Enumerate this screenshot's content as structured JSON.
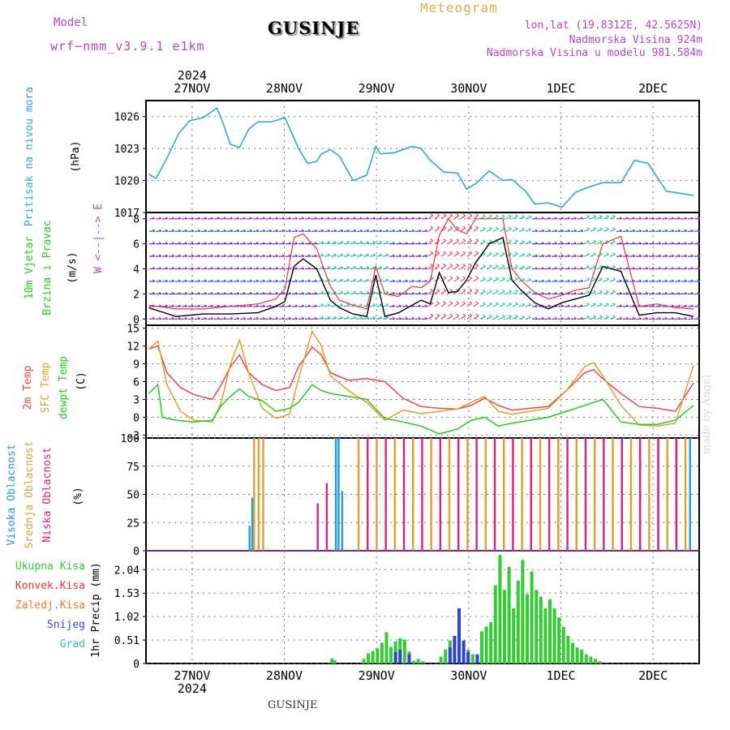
{
  "header": {
    "model_label": "Model",
    "model_name": "wrf−nmm_v3.9.1  e1km",
    "station": "GUSINJE",
    "meteogram": "Meteogram",
    "lonlat": "lon,lat (19.8312E, 42.5625N)",
    "altitude": "Nadmorska Visina 924m",
    "altitude_model": "Nadmorska Visina u modelu 981.584m"
  },
  "footer": {
    "station": "GUSINJE",
    "watermark": "made by Angel"
  },
  "colors": {
    "pressure": "#2aa9e0",
    "wind_black": "#000000",
    "wind_red": "#ee3333",
    "t2m": "#ee4444",
    "tsfc": "#dda030",
    "tdew": "#22cc22",
    "cloud_high": "#2299dd",
    "cloud_mid": "#dda030",
    "cloud_low": "#dd2277",
    "precip_total": "#33cc33",
    "precip_snow": "#3344cc",
    "precip_conv": "#ee3333"
  },
  "chart_data": [
    {
      "type": "line",
      "panel": "pressure",
      "ylabel": [
        "Pritisak na nivou mora",
        "(hPa)"
      ],
      "ylim": [
        1017,
        1027.5
      ],
      "yticks": [
        1017,
        1020,
        1023,
        1026
      ],
      "x_range_days": [
        0,
        6.0
      ],
      "xticks": [
        "27NOV",
        "28NOV",
        "29NOV",
        "30NOV",
        "1DEC",
        "2DEC"
      ],
      "xtick_year": "2024",
      "series": [
        {
          "color": "pressure",
          "x": [
            0,
            0.08,
            0.2,
            0.33,
            0.45,
            0.6,
            0.75,
            0.8,
            0.9,
            1.0,
            1.1,
            1.2,
            1.35,
            1.5,
            1.65,
            1.75,
            1.85,
            1.9,
            2.0,
            2.1,
            2.25,
            2.4,
            2.5,
            2.55,
            2.7,
            2.9,
            3.0,
            3.1,
            3.25,
            3.4,
            3.5,
            3.6,
            3.75,
            3.9,
            4.0,
            4.15,
            4.25,
            4.4,
            4.55,
            4.7,
            4.85,
            5.0,
            5.2,
            5.35,
            5.5,
            5.7,
            5.85,
            6.0
          ],
          "values": [
            1020.6,
            1020.2,
            1022.1,
            1024.4,
            1025.6,
            1025.9,
            1026.8,
            1025.8,
            1023.4,
            1023.1,
            1024.8,
            1025.5,
            1025.5,
            1025.9,
            1023.0,
            1021.6,
            1021.8,
            1022.5,
            1022.9,
            1022.3,
            1020.0,
            1020.5,
            1023.2,
            1022.5,
            1022.6,
            1023.2,
            1023.0,
            1021.9,
            1020.8,
            1020.7,
            1019.2,
            1019.7,
            1020.9,
            1020.0,
            1020.1,
            1019.0,
            1017.8,
            1017.9,
            1017.5,
            1018.9,
            1019.4,
            1019.8,
            1019.8,
            1021.9,
            1021.6,
            1019.0,
            1018.8,
            1018.6
          ]
        }
      ]
    },
    {
      "type": "line",
      "panel": "wind",
      "ylabel": [
        "10m Vjetar",
        "Brzina i Pravac",
        "(m/s)"
      ],
      "compass": "W <--|--> E",
      "ylim": [
        -0.5,
        8.5
      ],
      "yticks": [
        0,
        2,
        4,
        6,
        8
      ],
      "series": [
        {
          "name": "speed",
          "color": "wind_black",
          "x": [
            0,
            0.3,
            0.6,
            0.9,
            1.2,
            1.4,
            1.5,
            1.6,
            1.7,
            1.85,
            2.0,
            2.1,
            2.25,
            2.4,
            2.5,
            2.6,
            2.75,
            2.9,
            3.0,
            3.1,
            3.2,
            3.3,
            3.4,
            3.5,
            3.6,
            3.75,
            3.9,
            4.0,
            4.1,
            4.25,
            4.4,
            4.55,
            4.7,
            4.85,
            5.0,
            5.2,
            5.4,
            5.6,
            5.8,
            6.0
          ],
          "values": [
            0.9,
            0.2,
            0.4,
            0.4,
            0.5,
            1.0,
            1.4,
            4.2,
            4.8,
            4.0,
            1.5,
            0.9,
            0.4,
            0.2,
            3.5,
            0.2,
            0.5,
            1.1,
            1.5,
            1.2,
            3.7,
            2.1,
            2.2,
            3.1,
            4.5,
            6.0,
            6.5,
            3.1,
            2.3,
            1.3,
            0.8,
            1.3,
            1.6,
            1.9,
            4.2,
            3.8,
            0.3,
            0.5,
            0.5,
            0.2
          ]
        },
        {
          "name": "gust",
          "color": "wind_red",
          "x": [
            0,
            0.3,
            0.6,
            0.9,
            1.2,
            1.4,
            1.5,
            1.6,
            1.7,
            1.85,
            2.0,
            2.1,
            2.25,
            2.4,
            2.5,
            2.6,
            2.75,
            2.9,
            3.0,
            3.1,
            3.2,
            3.3,
            3.4,
            3.5,
            3.6,
            3.75,
            3.9,
            4.0,
            4.1,
            4.25,
            4.4,
            4.55,
            4.7,
            4.85,
            5.0,
            5.2,
            5.4,
            5.6,
            5.8,
            6.0
          ],
          "values": [
            1.1,
            0.8,
            0.8,
            1.0,
            1.2,
            1.6,
            2.4,
            6.5,
            6.8,
            5.6,
            2.6,
            1.5,
            1.1,
            0.8,
            4.2,
            2.0,
            1.8,
            2.6,
            2.5,
            3.0,
            6.7,
            8.0,
            7.1,
            6.8,
            8.0,
            8.0,
            8.0,
            4.0,
            3.1,
            2.1,
            1.6,
            1.9,
            2.3,
            2.5,
            6.0,
            6.6,
            1.0,
            1.2,
            0.9,
            0.8
          ]
        }
      ]
    },
    {
      "type": "line",
      "panel": "temperature",
      "ylabel": [
        "2m Temp",
        "SFC Temp",
        "dewpt Temp",
        "(C)"
      ],
      "ylim": [
        -3.5,
        15.5
      ],
      "yticks": [
        -3,
        0,
        3,
        6,
        9,
        12,
        15
      ],
      "series": [
        {
          "name": "2m Temp",
          "color": "t2m",
          "x": [
            0,
            0.1,
            0.2,
            0.35,
            0.5,
            0.7,
            0.8,
            0.9,
            1.0,
            1.1,
            1.25,
            1.4,
            1.55,
            1.65,
            1.8,
            1.9,
            2.0,
            2.2,
            2.4,
            2.6,
            2.8,
            3.0,
            3.2,
            3.4,
            3.55,
            3.7,
            3.85,
            4.0,
            4.2,
            4.4,
            4.6,
            4.8,
            4.9,
            5.0,
            5.2,
            5.4,
            5.6,
            5.8,
            6.0
          ],
          "values": [
            11.5,
            12.0,
            7.5,
            5.0,
            3.8,
            3.0,
            5.5,
            8.5,
            10.5,
            7.5,
            5.5,
            4.5,
            5.0,
            8.5,
            11.8,
            10.5,
            7.5,
            6.2,
            6.5,
            6.0,
            3.2,
            1.8,
            1.5,
            1.4,
            2.0,
            3.2,
            2.0,
            1.2,
            1.5,
            1.8,
            4.5,
            7.5,
            8.0,
            6.5,
            4.0,
            1.8,
            1.5,
            1.0,
            5.8
          ]
        },
        {
          "name": "SFC Temp",
          "color": "tsfc",
          "x": [
            0,
            0.1,
            0.2,
            0.35,
            0.5,
            0.7,
            0.8,
            0.9,
            1.0,
            1.1,
            1.25,
            1.4,
            1.55,
            1.65,
            1.8,
            1.9,
            2.0,
            2.2,
            2.4,
            2.6,
            2.8,
            3.0,
            3.2,
            3.4,
            3.55,
            3.7,
            3.85,
            4.0,
            4.2,
            4.4,
            4.6,
            4.8,
            4.9,
            5.0,
            5.2,
            5.4,
            5.6,
            5.8,
            6.0
          ],
          "values": [
            11.5,
            12.8,
            5.5,
            1.0,
            -0.5,
            -0.8,
            2.5,
            9.0,
            13.0,
            7.5,
            1.5,
            -0.2,
            0.5,
            6.5,
            14.5,
            12.0,
            7.0,
            4.5,
            2.5,
            -0.5,
            1.2,
            0.6,
            1.0,
            1.4,
            2.5,
            3.5,
            1.0,
            0.5,
            1.0,
            1.5,
            4.5,
            8.5,
            9.2,
            7.0,
            2.0,
            -1.3,
            -1.5,
            -1.0,
            8.8
          ]
        },
        {
          "name": "dewpt Temp",
          "color": "tdew",
          "x": [
            0,
            0.1,
            0.15,
            0.3,
            0.5,
            0.7,
            0.8,
            0.9,
            1.0,
            1.1,
            1.25,
            1.4,
            1.55,
            1.65,
            1.8,
            1.9,
            2.0,
            2.2,
            2.4,
            2.6,
            2.8,
            3.0,
            3.2,
            3.4,
            3.55,
            3.7,
            3.85,
            4.0,
            4.2,
            4.4,
            4.6,
            4.8,
            4.9,
            5.0,
            5.2,
            5.4,
            5.6,
            5.8,
            6.0
          ],
          "values": [
            4.0,
            5.5,
            0.0,
            -0.5,
            -0.8,
            -0.5,
            2.0,
            3.5,
            4.8,
            3.5,
            2.8,
            1.0,
            1.5,
            2.5,
            5.5,
            4.5,
            4.0,
            3.5,
            3.0,
            -0.2,
            -0.8,
            -1.5,
            -2.8,
            -2.0,
            -0.5,
            0.0,
            -1.5,
            -1.0,
            -0.5,
            0.0,
            1.0,
            2.0,
            2.5,
            3.0,
            -0.8,
            -1.2,
            -1.2,
            -0.5,
            2.0
          ]
        }
      ]
    },
    {
      "type": "bar",
      "panel": "clouds",
      "ylabel": [
        "Visoka Oblacnost",
        "Srednja Oblacnost",
        "Niska Oblacnost",
        "(%)"
      ],
      "ylim": [
        0,
        100
      ],
      "yticks": [
        0,
        25,
        50,
        75,
        100
      ],
      "segments": [
        {
          "name": "Visoka Oblacnost",
          "color": "cloud_high",
          "bars": [
            [
              1.1,
              22
            ],
            [
              1.13,
              47
            ],
            [
              2.05,
              100
            ],
            [
              2.08,
              100
            ],
            [
              2.12,
              53
            ],
            [
              4.2,
              100
            ],
            [
              4.5,
              100
            ],
            [
              4.7,
              47
            ],
            [
              5.2,
              100
            ],
            [
              5.4,
              100
            ],
            [
              5.6,
              100
            ],
            [
              5.8,
              100
            ],
            [
              5.95,
              100
            ]
          ]
        },
        {
          "name": "Srednja Oblacnost",
          "color": "cloud_mid",
          "bars": [
            [
              1.15,
              100
            ],
            [
              1.2,
              100
            ],
            [
              1.25,
              100
            ],
            [
              2.3,
              100
            ],
            [
              2.5,
              100
            ],
            [
              2.7,
              100
            ],
            [
              2.9,
              100
            ],
            [
              3.1,
              100
            ],
            [
              3.3,
              100
            ],
            [
              3.5,
              100
            ],
            [
              3.7,
              100
            ],
            [
              3.9,
              100
            ],
            [
              4.1,
              100
            ],
            [
              4.3,
              100
            ],
            [
              4.5,
              100
            ],
            [
              4.7,
              100
            ],
            [
              4.9,
              100
            ],
            [
              5.1,
              100
            ],
            [
              5.3,
              100
            ],
            [
              5.5,
              100
            ],
            [
              5.7,
              100
            ],
            [
              5.9,
              100
            ]
          ]
        },
        {
          "name": "Niska Oblacnost",
          "color": "cloud_low",
          "bars": [
            [
              1.85,
              42
            ],
            [
              1.95,
              60
            ],
            [
              2.4,
              100
            ],
            [
              2.6,
              100
            ],
            [
              2.8,
              100
            ],
            [
              3.0,
              100
            ],
            [
              3.2,
              100
            ],
            [
              3.4,
              100
            ],
            [
              3.6,
              100
            ],
            [
              3.8,
              100
            ],
            [
              4.0,
              100
            ],
            [
              4.2,
              100
            ],
            [
              4.4,
              100
            ],
            [
              4.6,
              100
            ],
            [
              4.8,
              100
            ],
            [
              5.0,
              100
            ],
            [
              5.2,
              100
            ],
            [
              5.4,
              100
            ],
            [
              5.6,
              100
            ],
            [
              5.8,
              100
            ]
          ]
        }
      ]
    },
    {
      "type": "bar",
      "panel": "precipitation",
      "ylabel": [
        "1hr Precip (mm)"
      ],
      "legend": [
        "Ukupna Kisa",
        "Konvek.Kisa",
        "Zaledj.Kisa",
        "Snijeg",
        "Grad"
      ],
      "legend_colors": [
        "#33cc33",
        "#ee3333",
        "#ee7733",
        "#4444dd",
        "#33bbbb"
      ],
      "ylim": [
        0,
        2.45
      ],
      "yticks": [
        0,
        0.51,
        1.02,
        1.53,
        2.04
      ],
      "series": [
        {
          "name": "Ukupna Kisa",
          "color": "precip_total",
          "x": [
            2.0,
            2.03,
            2.35,
            2.4,
            2.45,
            2.5,
            2.55,
            2.6,
            2.65,
            2.7,
            2.75,
            2.8,
            2.85,
            2.9,
            2.95,
            3.0,
            3.2,
            3.25,
            3.3,
            3.35,
            3.4,
            3.45,
            3.5,
            3.55,
            3.6,
            3.65,
            3.7,
            3.75,
            3.8,
            3.85,
            3.9,
            3.95,
            4.0,
            4.05,
            4.1,
            4.15,
            4.2,
            4.25,
            4.3,
            4.35,
            4.4,
            4.45,
            4.5,
            4.55,
            4.6,
            4.65,
            4.7,
            4.75,
            4.8,
            4.85,
            4.9,
            4.95
          ],
          "values": [
            0.11,
            0.07,
            0.1,
            0.22,
            0.27,
            0.33,
            0.45,
            0.68,
            0.36,
            0.48,
            0.55,
            0.52,
            0.26,
            0.06,
            0.1,
            0.05,
            0.15,
            0.3,
            0.5,
            0.6,
            0.7,
            0.45,
            0.3,
            0.2,
            0.15,
            0.7,
            0.8,
            0.9,
            1.7,
            2.36,
            1.6,
            2.1,
            1.2,
            1.8,
            2.25,
            1.5,
            2.0,
            1.6,
            1.45,
            1.2,
            1.4,
            1.2,
            1.0,
            0.8,
            0.6,
            0.45,
            0.35,
            0.3,
            0.2,
            0.15,
            0.1,
            0.05
          ]
        },
        {
          "name": "Snijeg",
          "color": "precip_snow",
          "x": [
            2.7,
            2.75,
            2.85,
            3.3,
            3.35,
            3.4,
            3.45,
            3.5,
            3.6
          ],
          "values": [
            0.25,
            0.3,
            0.2,
            0.35,
            0.6,
            1.2,
            0.5,
            0.25,
            0.2
          ]
        }
      ]
    }
  ]
}
